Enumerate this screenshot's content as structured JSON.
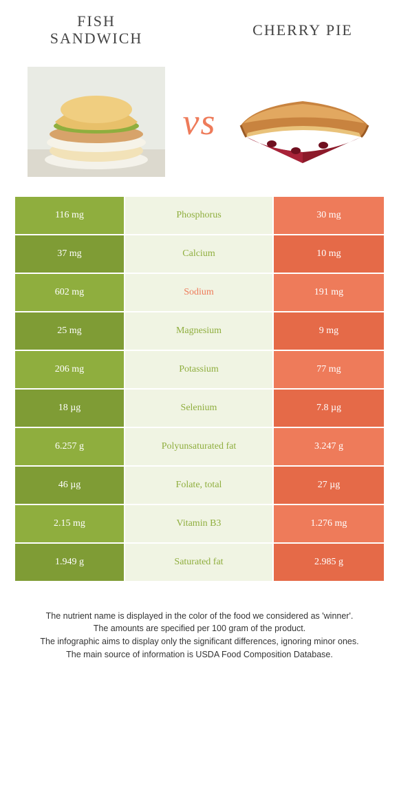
{
  "left_food": {
    "title": "Fish Sandwich",
    "color": "#8fae3e",
    "color_dark": "#7f9c35"
  },
  "right_food": {
    "title": "Cherry Pie",
    "color": "#ee7b5a",
    "color_dark": "#e56a48"
  },
  "mid_bg": "#f0f4e3",
  "vs_label": "vs",
  "rows": [
    {
      "left": "116 mg",
      "nutrient": "Phosphorus",
      "right": "30 mg",
      "winner": "left"
    },
    {
      "left": "37 mg",
      "nutrient": "Calcium",
      "right": "10 mg",
      "winner": "left"
    },
    {
      "left": "602 mg",
      "nutrient": "Sodium",
      "right": "191 mg",
      "winner": "right"
    },
    {
      "left": "25 mg",
      "nutrient": "Magnesium",
      "right": "9 mg",
      "winner": "left"
    },
    {
      "left": "206 mg",
      "nutrient": "Potassium",
      "right": "77 mg",
      "winner": "left"
    },
    {
      "left": "18 µg",
      "nutrient": "Selenium",
      "right": "7.8 µg",
      "winner": "left"
    },
    {
      "left": "6.257 g",
      "nutrient": "Polyunsaturated fat",
      "right": "3.247 g",
      "winner": "left"
    },
    {
      "left": "46 µg",
      "nutrient": "Folate, total",
      "right": "27 µg",
      "winner": "left"
    },
    {
      "left": "2.15 mg",
      "nutrient": "Vitamin B3",
      "right": "1.276 mg",
      "winner": "left"
    },
    {
      "left": "1.949 g",
      "nutrient": "Saturated fat",
      "right": "2.985 g",
      "winner": "left"
    }
  ],
  "footer": {
    "line1": "The nutrient name is displayed in the color of the food we considered as 'winner'.",
    "line2": "The amounts are specified per 100 gram of the product.",
    "line3": "The infographic aims to display only the significant differences, ignoring minor ones.",
    "line4": "The main source of information is USDA Food Composition Database."
  }
}
